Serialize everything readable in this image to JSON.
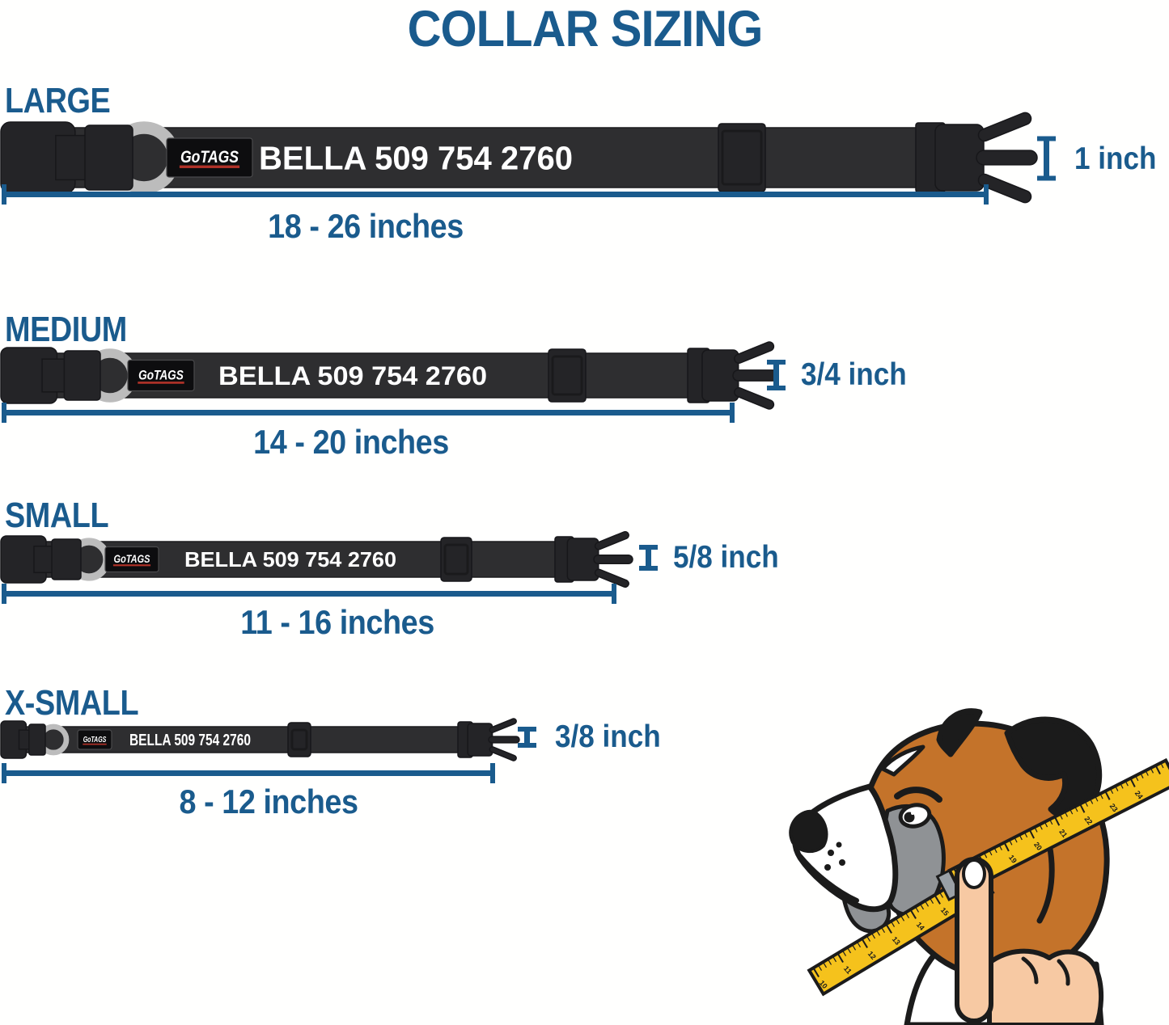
{
  "title": "COLLAR SIZING",
  "accent_color": "#1A5B8D",
  "collar": {
    "brand": "GoTAGS",
    "id_text": "BELLA 509 754 2760",
    "strap_color": "#2E2E30",
    "buckle_color": "#242427",
    "dring_color": "#BCBCBC",
    "patch_bg": "#0D0D0F",
    "patch_border": "#4A4A4C",
    "patch_underline": "#B03228",
    "id_text_color": "#FFFFFF"
  },
  "sizes": [
    {
      "key": "large",
      "label": "LARGE",
      "range": "18 - 26 inches",
      "width": "1 inch"
    },
    {
      "key": "medium",
      "label": "MEDIUM",
      "range": "14 - 20 inches",
      "width": "3/4 inch"
    },
    {
      "key": "small",
      "label": "SMALL",
      "range": "11 - 16 inches",
      "width": "5/8 inch"
    },
    {
      "key": "xsmall",
      "label": "X-SMALL",
      "range": "8 - 12 inches",
      "width": "3/8 inch"
    }
  ],
  "dog": {
    "description": "boxer dog head being measured around the neck with a tape measure held by a hand",
    "colors": {
      "tan": "#C4732A",
      "black": "#1B1B1B",
      "gray": "#8F9295",
      "white": "#FFFFFF",
      "tape": "#F5C21C",
      "tape_tip": "#9AA0A6",
      "skin": "#F7C9A3"
    },
    "tape_numbers_lower": [
      "10",
      "11",
      "12",
      "13",
      "14",
      "15",
      "16"
    ],
    "tape_numbers_upper": [
      "17",
      "18",
      "19",
      "20",
      "21",
      "22",
      "23",
      "24"
    ]
  }
}
